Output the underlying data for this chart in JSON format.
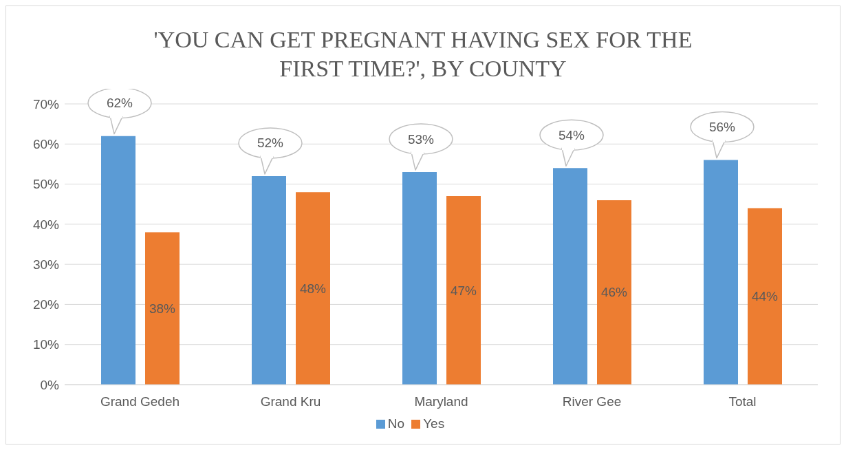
{
  "chart_data": {
    "type": "bar",
    "title": "'YOU CAN GET PREGNANT HAVING SEX FOR THE FIRST TIME?', BY COUNTY",
    "categories": [
      "Grand Gedeh",
      "Grand Kru",
      "Maryland",
      "River Gee",
      "Total"
    ],
    "series": [
      {
        "name": "No",
        "color": "#5b9bd5",
        "values": [
          62,
          52,
          53,
          54,
          56
        ],
        "value_labels": [
          "62%",
          "52%",
          "53%",
          "54%",
          "56%"
        ]
      },
      {
        "name": "Yes",
        "color": "#ed7d31",
        "values": [
          38,
          48,
          47,
          46,
          44
        ],
        "value_labels": [
          "38%",
          "48%",
          "47%",
          "46%",
          "44%"
        ]
      }
    ],
    "ylim": [
      0,
      70
    ],
    "yticks": [
      {
        "value": 0,
        "label": "0%"
      },
      {
        "value": 10,
        "label": "10%"
      },
      {
        "value": 20,
        "label": "20%"
      },
      {
        "value": 30,
        "label": "30%"
      },
      {
        "value": 40,
        "label": "40%"
      },
      {
        "value": 50,
        "label": "50%"
      },
      {
        "value": 60,
        "label": "60%"
      },
      {
        "value": 70,
        "label": "70%"
      }
    ],
    "grid": "y",
    "legend": "bottom"
  }
}
